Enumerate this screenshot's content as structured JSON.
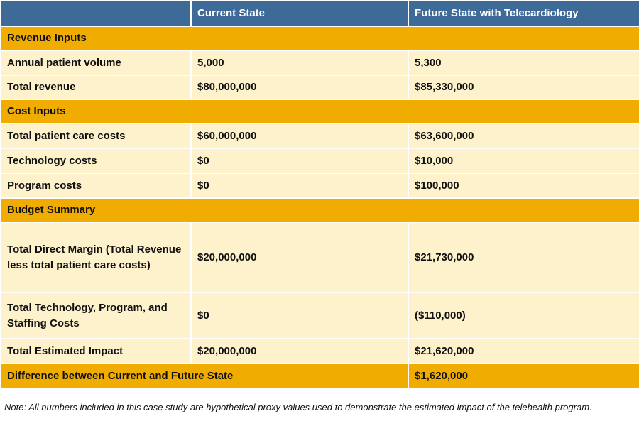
{
  "header": {
    "col1": "",
    "col2": "Current State",
    "col3": "Future State with Telecardiology"
  },
  "sections": {
    "revenue": "Revenue Inputs",
    "cost": "Cost Inputs",
    "budget": "Budget Summary"
  },
  "rows": {
    "volume": {
      "label": "Annual patient volume",
      "current": "5,000",
      "future": "5,300"
    },
    "revenue": {
      "label": "Total revenue",
      "current": "$80,000,000",
      "future": "$85,330,000"
    },
    "care_costs": {
      "label": "Total patient care costs",
      "current": "$60,000,000",
      "future": "$63,600,000"
    },
    "tech_costs": {
      "label": "Technology costs",
      "current": "$0",
      "future": "$10,000"
    },
    "program_costs": {
      "label": "Program costs",
      "current": "$0",
      "future": "$100,000"
    },
    "direct_margin": {
      "label": "Total Direct Margin (Total Revenue less total patient care costs)",
      "current": "$20,000,000",
      "future": "$21,730,000"
    },
    "tech_program_staffing": {
      "label": "Total Technology, Program, and Staffing Costs",
      "current": "$0",
      "future": "($110,000)"
    },
    "estimated_impact": {
      "label": "Total Estimated Impact",
      "current": "$20,000,000",
      "future": "$21,620,000"
    }
  },
  "difference": {
    "label": "Difference between Current and Future State",
    "value": "$1,620,000"
  },
  "note": "Note: All numbers included in this case study are hypothetical proxy values used to demonstrate the estimated impact of the telehealth program."
}
